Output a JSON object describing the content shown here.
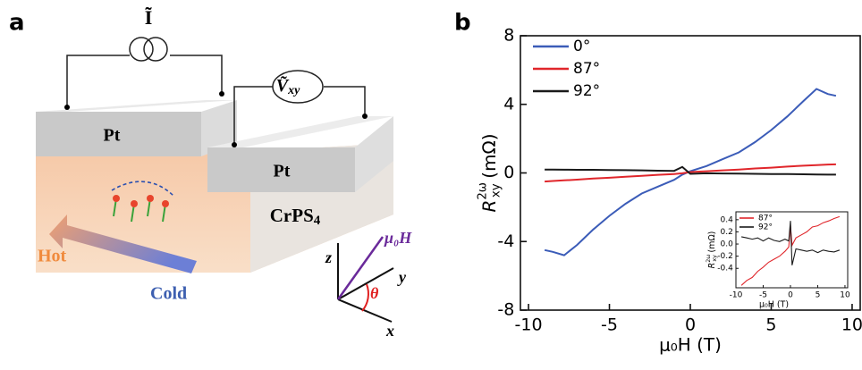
{
  "panels": {
    "a": "a",
    "b": "b"
  },
  "diagram": {
    "current": "Ĩ",
    "voltage": "Ṽ",
    "voltage_sub": "xy",
    "pt_left": "Pt",
    "pt_right": "Pt",
    "sample": "CrPS",
    "sample_sub": "4",
    "hot": "Hot",
    "cold": "Cold",
    "axis_z": "z",
    "axis_y": "y",
    "axis_x": "x",
    "angle": "θ",
    "field": "μ₀H"
  },
  "chart_data": [
    {
      "type": "line",
      "x_label": "μ₀H (T)",
      "y_label": {
        "symbol": "R",
        "sup": "2ω",
        "sub": "xy",
        "unit": "(mΩ)"
      },
      "x": [
        -9,
        -8.5,
        -7.8,
        -7,
        -6,
        -5,
        -4,
        -3,
        -2,
        -1,
        -0.5,
        0,
        1,
        2,
        3,
        4,
        5,
        6,
        7,
        7.8,
        8.5,
        9
      ],
      "xlim": [
        -10.5,
        10.5
      ],
      "xticks": [
        -10,
        -5,
        0,
        5,
        10
      ],
      "ylim": [
        -8,
        8
      ],
      "yticks": [
        -8,
        -4,
        0,
        4,
        8
      ],
      "legend": "upper left",
      "series": [
        {
          "name": "0°",
          "color": "#3b5cb8",
          "values": [
            -4.5,
            -4.6,
            -4.8,
            -4.2,
            -3.3,
            -2.5,
            -1.8,
            -1.2,
            -0.8,
            -0.4,
            -0.1,
            0.1,
            0.4,
            0.8,
            1.2,
            1.8,
            2.5,
            3.3,
            4.2,
            4.9,
            4.6,
            4.5
          ]
        },
        {
          "name": "87°",
          "color": "#e0262b",
          "values": [
            -0.5,
            -0.47,
            -0.43,
            -0.39,
            -0.33,
            -0.28,
            -0.22,
            -0.17,
            -0.11,
            -0.06,
            -0.02,
            0.05,
            0.1,
            0.15,
            0.2,
            0.26,
            0.31,
            0.37,
            0.42,
            0.46,
            0.49,
            0.5
          ]
        },
        {
          "name": "92°",
          "color": "#1a1a1a",
          "values": [
            0.2,
            0.2,
            0.19,
            0.18,
            0.18,
            0.17,
            0.16,
            0.15,
            0.13,
            0.12,
            0.35,
            -0.05,
            -0.02,
            -0.03,
            -0.04,
            -0.05,
            -0.06,
            -0.07,
            -0.08,
            -0.09,
            -0.1,
            -0.1
          ]
        }
      ]
    },
    {
      "type": "line",
      "x_label": "μ₀H (T)",
      "y_label": {
        "symbol": "R",
        "sup": "2ω",
        "sub": "xy",
        "unit": "(mΩ)"
      },
      "x": [
        -9,
        -8,
        -7,
        -6,
        -5,
        -4,
        -3,
        -2,
        -1,
        -0.3,
        0,
        0.3,
        1,
        2,
        3,
        4,
        5,
        6,
        7,
        8,
        9
      ],
      "xlim": [
        -10,
        10.5
      ],
      "xticks": [
        -10,
        -5,
        0,
        5,
        10
      ],
      "ylim": [
        -0.72,
        0.53
      ],
      "yticks": [
        {
          "value": -0.4,
          "label": "-0.4"
        },
        {
          "value": -0.2,
          "label": "-0.2"
        },
        {
          "value": 0,
          "label": "0.0"
        },
        {
          "value": 0.2,
          "label": "0.2"
        },
        {
          "value": 0.4,
          "label": "0.4"
        }
      ],
      "legend": "upper left",
      "series": [
        {
          "name": "87°",
          "color": "#e0262b",
          "values": [
            -0.68,
            -0.6,
            -0.55,
            -0.45,
            -0.38,
            -0.3,
            -0.25,
            -0.2,
            -0.12,
            -0.05,
            0.3,
            -0.02,
            0.1,
            0.15,
            0.2,
            0.28,
            0.3,
            0.35,
            0.38,
            0.42,
            0.45
          ]
        },
        {
          "name": "92°",
          "color": "#1a1a1a",
          "values": [
            0.12,
            0.1,
            0.08,
            0.1,
            0.05,
            0.1,
            0.06,
            0.04,
            0.08,
            0.05,
            0.38,
            -0.35,
            -0.08,
            -0.1,
            -0.12,
            -0.1,
            -0.14,
            -0.1,
            -0.12,
            -0.13,
            -0.1
          ]
        }
      ]
    }
  ]
}
